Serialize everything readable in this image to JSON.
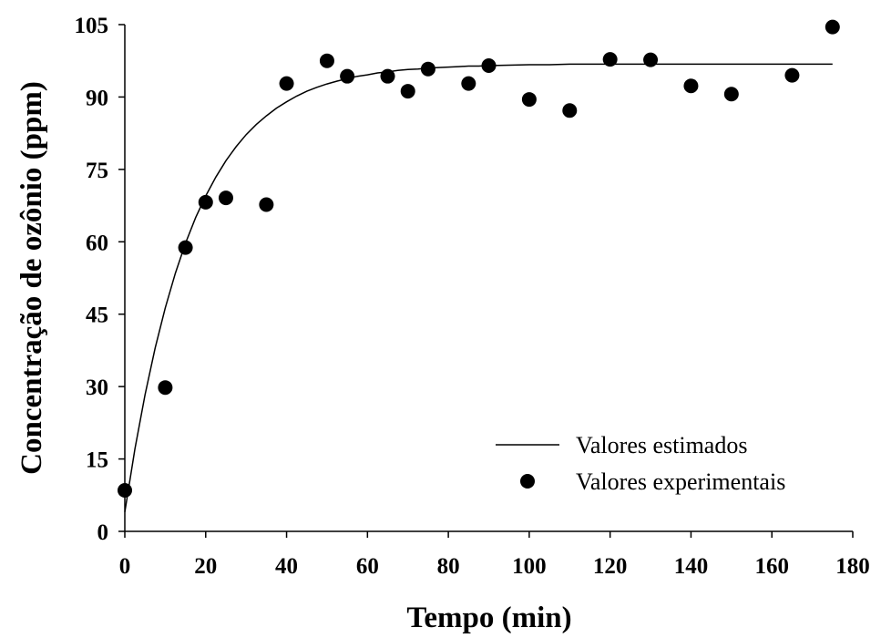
{
  "chart_data": {
    "type": "scatter",
    "xlabel": "Tempo (min)",
    "ylabel": "Concentração de ozônio (ppm)",
    "xlim": [
      0,
      180
    ],
    "ylim": [
      0,
      105
    ],
    "xticks": [
      0,
      20,
      40,
      60,
      80,
      100,
      120,
      140,
      160,
      180
    ],
    "yticks": [
      0,
      15,
      30,
      45,
      60,
      75,
      90,
      105
    ],
    "grid": false,
    "legend_position": "bottom-right",
    "series": [
      {
        "name": "Valores estimados",
        "kind": "line",
        "color": "#000000",
        "x": [
          0,
          2.5,
          5,
          7.5,
          10,
          12.5,
          15,
          17.5,
          20,
          22.5,
          25,
          27.5,
          30,
          32.5,
          35,
          37.5,
          40,
          42.5,
          45,
          47.5,
          50,
          52.5,
          55,
          57.5,
          60,
          62.5,
          65,
          67.5,
          70,
          72.5,
          75,
          77.5,
          80,
          82.5,
          85,
          87.5,
          90,
          95,
          100,
          105,
          110,
          115,
          120,
          125,
          130,
          135,
          140,
          145,
          150,
          155,
          160,
          165,
          170,
          175
        ],
        "y": [
          4.0,
          17.1,
          28.3,
          38.0,
          46.3,
          53.5,
          59.7,
          65.0,
          69.5,
          73.4,
          76.8,
          79.7,
          82.2,
          84.3,
          86.1,
          87.7,
          89.0,
          90.2,
          91.2,
          92.0,
          92.7,
          93.3,
          93.8,
          94.3,
          94.6,
          95.0,
          95.2,
          95.5,
          95.7,
          95.8,
          96.0,
          96.1,
          96.2,
          96.3,
          96.4,
          96.4,
          96.5,
          96.6,
          96.7,
          96.7,
          96.8,
          96.8,
          96.8,
          96.8,
          96.8,
          96.8,
          96.8,
          96.8,
          96.8,
          96.8,
          96.8,
          96.8,
          96.8,
          96.8
        ]
      },
      {
        "name": "Valores experimentais",
        "kind": "scatter",
        "color": "#000000",
        "x": [
          0,
          10,
          15,
          20,
          25,
          35,
          40,
          50,
          55,
          65,
          70,
          75,
          85,
          90,
          100,
          110,
          120,
          130,
          140,
          150,
          165,
          175
        ],
        "y": [
          8.5,
          29.8,
          58.8,
          68.2,
          69.1,
          67.7,
          92.8,
          97.5,
          94.3,
          94.3,
          91.2,
          95.8,
          92.8,
          96.5,
          89.5,
          87.2,
          97.8,
          97.7,
          92.3,
          90.6,
          94.5,
          104.5
        ]
      }
    ]
  }
}
